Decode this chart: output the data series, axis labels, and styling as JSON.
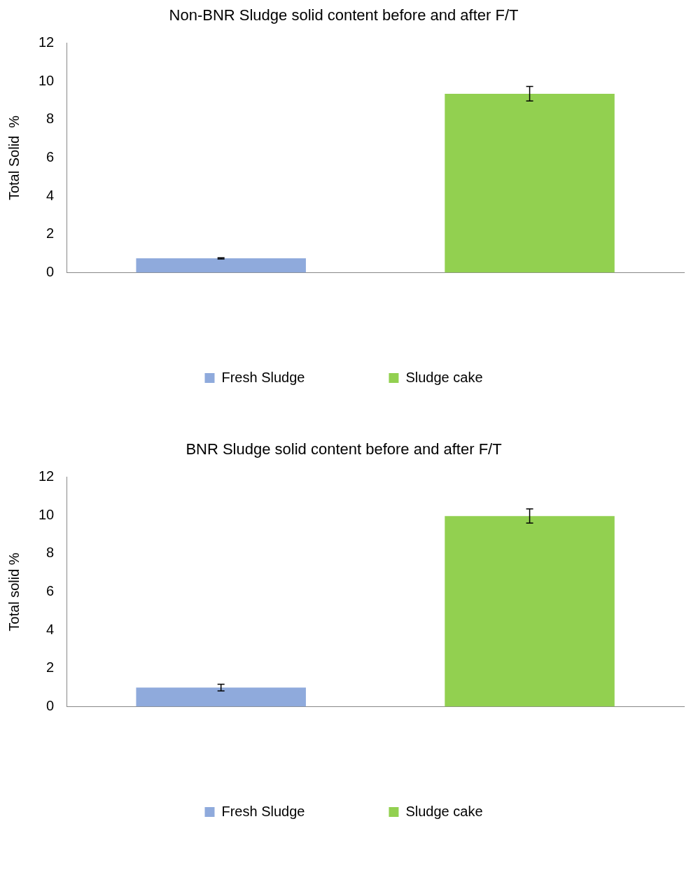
{
  "chart_data": [
    {
      "type": "bar",
      "title": "Non-BNR Sludge solid content before and after F/T",
      "ylabel": "Total Solid  %",
      "categories": [
        null,
        null
      ],
      "ylim": [
        0,
        12
      ],
      "yticks": [
        0,
        2,
        4,
        6,
        8,
        10,
        12
      ],
      "grid": false,
      "legend": "bottom",
      "series": [
        {
          "name": "Fresh Sludge",
          "color": "#8faadc",
          "values": [
            0.75,
            null
          ],
          "errors": [
            0.03,
            null
          ]
        },
        {
          "name": "Sludge cake",
          "color": "#92d050",
          "values": [
            null,
            9.35
          ],
          "errors": [
            null,
            0.38
          ]
        }
      ]
    },
    {
      "type": "bar",
      "title": "BNR Sludge solid content before and after F/T",
      "ylabel": "Total solid %",
      "categories": [
        null,
        null
      ],
      "ylim": [
        0,
        12
      ],
      "yticks": [
        0,
        2,
        4,
        6,
        8,
        10,
        12
      ],
      "grid": false,
      "legend": "bottom",
      "series": [
        {
          "name": "Fresh Sludge",
          "color": "#8faadc",
          "values": [
            1.0,
            null
          ],
          "errors": [
            0.17,
            null
          ]
        },
        {
          "name": "Sludge cake",
          "color": "#92d050",
          "values": [
            null,
            9.96
          ],
          "errors": [
            null,
            0.37
          ]
        }
      ]
    }
  ]
}
